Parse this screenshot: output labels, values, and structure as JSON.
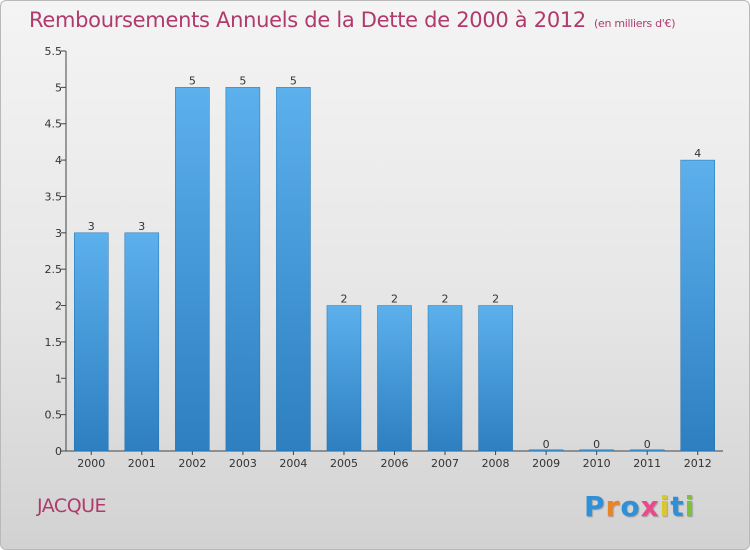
{
  "title": "Remboursements Annuels de la Dette de 2000 à 2012",
  "unit": "(en milliers d'€)",
  "commune": "JACQUE",
  "logo": {
    "letters": [
      {
        "ch": "P",
        "color": "#2f8fd8"
      },
      {
        "ch": "r",
        "color": "#e8842a"
      },
      {
        "ch": "o",
        "color": "#2f8fd8"
      },
      {
        "ch": "x",
        "color": "#e84a8a"
      },
      {
        "ch": "i",
        "color": "#d9c630"
      },
      {
        "ch": "t",
        "color": "#2f8fd8"
      },
      {
        "ch": "i",
        "color": "#7ec23a"
      }
    ]
  },
  "chart_data": {
    "type": "bar",
    "title": "Remboursements Annuels de la Dette de 2000 à 2012",
    "categories": [
      "2000",
      "2001",
      "2002",
      "2003",
      "2004",
      "2005",
      "2006",
      "2007",
      "2008",
      "2009",
      "2010",
      "2011",
      "2012"
    ],
    "values": [
      3,
      3,
      5,
      5,
      5,
      2,
      2,
      2,
      2,
      0,
      0,
      0,
      4
    ],
    "data_labels": [
      "3",
      "3",
      "5",
      "5",
      "5",
      "2",
      "2",
      "2",
      "2",
      "0",
      "0",
      "0",
      "4"
    ],
    "yticks": [
      "0",
      "0.5",
      "1",
      "1.5",
      "2",
      "2.5",
      "3",
      "3.5",
      "4",
      "4.5",
      "5",
      "5.5"
    ],
    "ylim": [
      0,
      5.5
    ],
    "bar_color": "#3c98d8",
    "grid": false
  }
}
